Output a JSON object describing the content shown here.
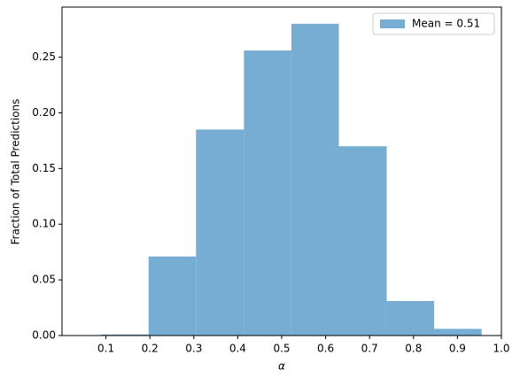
{
  "chart_data": {
    "type": "histogram",
    "xlabel": "α",
    "ylabel": "Fraction of Total Predictions",
    "bins": [
      0.089,
      0.197,
      0.305,
      0.414,
      0.522,
      0.63,
      0.739,
      0.847,
      0.955
    ],
    "series": [
      {
        "name": "Mean = 0.51",
        "color": "#77acd3",
        "values": [
          0.001,
          0.071,
          0.185,
          0.256,
          0.28,
          0.17,
          0.031,
          0.006
        ]
      }
    ],
    "xlim": [
      0,
      1
    ],
    "xticks": [
      0.1,
      0.2,
      0.3,
      0.4,
      0.5,
      0.6,
      0.7,
      0.8,
      0.9,
      {
        "value": 1,
        "label": "1.0"
      }
    ],
    "ylim": [
      0,
      0.295
    ],
    "yticks": [
      {
        "value": 0,
        "label": "0.00"
      },
      {
        "value": 0.05,
        "label": "0.05"
      },
      {
        "value": 0.1,
        "label": "0.10"
      },
      {
        "value": 0.15,
        "label": "0.15"
      },
      {
        "value": 0.2,
        "label": "0.20"
      },
      {
        "value": 0.25,
        "label": "0.25"
      }
    ],
    "legend": "upper right",
    "grid": false
  }
}
